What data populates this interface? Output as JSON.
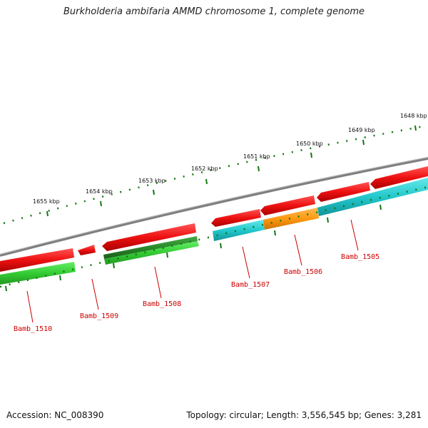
{
  "title": "Burkholderia ambifaria AMMD chromosome 1, complete genome",
  "footer": {
    "accession": "Accession: NC_008390",
    "summary": "Topology: circular; Length: 3,556,545 bp; Genes: 3,281"
  },
  "colors": {
    "backbone": "#7f7f7f",
    "forward_gene": "#ee1111",
    "reverse_gene": "#33cc33",
    "reverse_gene_dark": "#2a8a2a",
    "cds_cyan": "#22c8cc",
    "cds_orange": "#ff9911",
    "scale_ticks": "#117711",
    "gene_labels": "#cc0000"
  },
  "scale_labels": [
    "1655 kbp",
    "1654 kbp",
    "1653 kbp",
    "1652 kbp",
    "1651 kbp",
    "1650 kbp",
    "1649 kbp",
    "1648 kbp"
  ],
  "genes": [
    {
      "name": "Bamb_1510",
      "strand": "reverse"
    },
    {
      "name": "Bamb_1509",
      "strand": "forward"
    },
    {
      "name": "Bamb_1508",
      "strand": "forward"
    },
    {
      "name": "Bamb_1507",
      "strand": "forward"
    },
    {
      "name": "Bamb_1506",
      "strand": "forward"
    },
    {
      "name": "Bamb_1505",
      "strand": "forward"
    }
  ]
}
